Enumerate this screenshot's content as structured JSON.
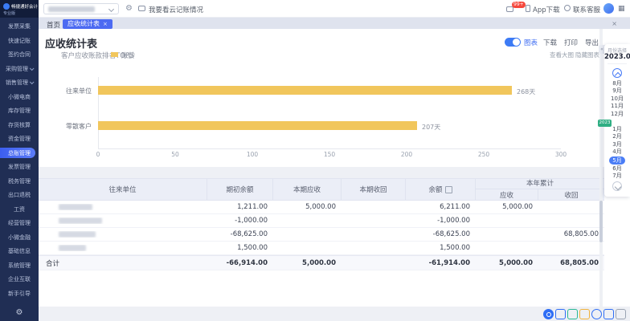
{
  "app": {
    "logo_title": "畅捷通好会计",
    "logo_subtitle": "专业版"
  },
  "topbar": {
    "search_masked": true,
    "help_label": "我要看云记账情况",
    "badge": "99+",
    "app_download": "App下载",
    "service": "联系客服"
  },
  "tabs": {
    "home": "首页",
    "active": "应收统计表",
    "close": "×"
  },
  "page": {
    "title": "应收统计表",
    "toggle_label": "图表",
    "download": "下载",
    "print": "打印",
    "export": "导出",
    "link_view": "查看大图",
    "link_hide": "隐藏图表"
  },
  "chart_data": {
    "type": "bar",
    "orientation": "horizontal",
    "title": "客户应收账款排名TOP5",
    "legend": [
      "账龄"
    ],
    "categories": [
      "往来单位",
      "零散客户"
    ],
    "values": [
      268,
      207
    ],
    "value_labels": [
      "268天",
      "207天"
    ],
    "unit": "天",
    "xlim": [
      0,
      300
    ],
    "xtick_labels": [
      "0",
      "50",
      "100",
      "150",
      "200",
      "250",
      "300"
    ],
    "bar_color": "#f1c65c",
    "grid": false,
    "legend_position": "top-left"
  },
  "table": {
    "headers": {
      "unit": "往来单位",
      "opening": "期初余额",
      "period_receivable": "本期应收",
      "period_received": "本期收回",
      "balance": "余额",
      "ytd_group": "本年累计",
      "ytd_receivable": "应收",
      "ytd_received": "收回"
    },
    "rows": [
      {
        "name_masked": true,
        "cells": [
          "1,211.00",
          "5,000.00",
          "",
          "6,211.00",
          "5,000.00",
          ""
        ]
      },
      {
        "name_masked": true,
        "cells": [
          "-1,000.00",
          "",
          "",
          "-1,000.00",
          "",
          ""
        ]
      },
      {
        "name_masked": true,
        "cells": [
          "-68,625.00",
          "",
          "",
          "-68,625.00",
          "",
          "68,805.00"
        ]
      },
      {
        "name_masked": true,
        "cells": [
          "1,500.00",
          "",
          "",
          "1,500.00",
          "",
          ""
        ]
      }
    ],
    "total_label": "合计",
    "total_cells": [
      "-66,914.00",
      "5,000.00",
      "",
      "-61,914.00",
      "5,000.00",
      "68,805.00"
    ]
  },
  "sidebar": {
    "items": [
      {
        "label": "发票采集"
      },
      {
        "label": "快速记账"
      },
      {
        "label": "签约合同"
      },
      {
        "label": "采购管理",
        "has_children": true
      },
      {
        "label": "销售管理",
        "has_children": true
      },
      {
        "label": "小微电商"
      },
      {
        "label": "库存管理"
      },
      {
        "label": "存货核算"
      },
      {
        "label": "资金管理"
      },
      {
        "label": "总账管理",
        "active": true
      },
      {
        "label": "发票管理"
      },
      {
        "label": "税务管理"
      },
      {
        "label": "出口退税"
      },
      {
        "label": "工资"
      },
      {
        "label": "经营管理"
      },
      {
        "label": "小微金融"
      },
      {
        "label": "基础信息"
      },
      {
        "label": "系统管理"
      },
      {
        "label": "企业互联"
      },
      {
        "label": "新手引导"
      }
    ]
  },
  "month_panel": {
    "title": "月份选择",
    "current": "2023.05",
    "year_tag": "2023",
    "months": [
      "8月",
      "9月",
      "10月",
      "11月",
      "12月",
      "1月",
      "2月",
      "3月",
      "4月",
      "5月",
      "6月",
      "7月"
    ],
    "selected": "5月"
  },
  "quickbar": [
    {
      "name": "customer-service"
    },
    {
      "name": "report"
    },
    {
      "name": "edit"
    },
    {
      "name": "calendar"
    },
    {
      "name": "clock"
    },
    {
      "name": "apps"
    },
    {
      "name": "menu"
    }
  ],
  "colors": {
    "accent": "#4c6af2",
    "bar": "#f1c65c",
    "sidebar_bg": "#202e54",
    "sidebar_active": "#4166f0",
    "badge": "#f5483d",
    "month_selected": "#4a7df6",
    "year_tag": "#2fae83"
  }
}
